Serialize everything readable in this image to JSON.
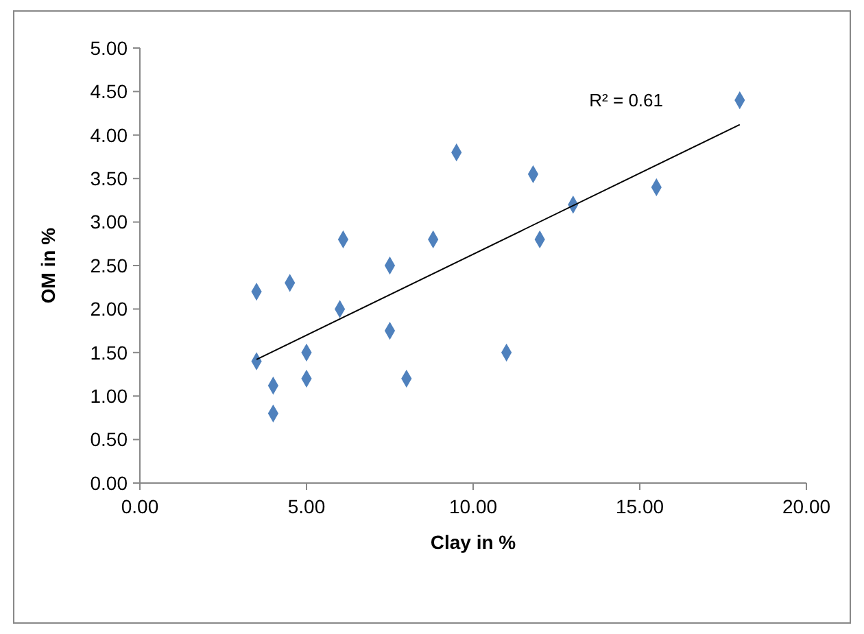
{
  "chart_data": {
    "type": "scatter",
    "xlabel": "Clay in %",
    "ylabel": "OM in %",
    "xlim": [
      0,
      20
    ],
    "ylim": [
      0,
      5
    ],
    "xticks": [
      {
        "value": 0,
        "label": "0.00"
      },
      {
        "value": 5,
        "label": "5.00"
      },
      {
        "value": 10,
        "label": "10.00"
      },
      {
        "value": 15,
        "label": "15.00"
      },
      {
        "value": 20,
        "label": "20.00"
      }
    ],
    "yticks": [
      {
        "value": 0,
        "label": "0.00"
      },
      {
        "value": 0.5,
        "label": "0.50"
      },
      {
        "value": 1,
        "label": "1.00"
      },
      {
        "value": 1.5,
        "label": "1.50"
      },
      {
        "value": 2,
        "label": "2.00"
      },
      {
        "value": 2.5,
        "label": "2.50"
      },
      {
        "value": 3,
        "label": "3.00"
      },
      {
        "value": 3.5,
        "label": "3.50"
      },
      {
        "value": 4,
        "label": "4.00"
      },
      {
        "value": 4.5,
        "label": "4.50"
      },
      {
        "value": 5,
        "label": "5.00"
      }
    ],
    "grid": false,
    "series": [
      {
        "marker": "diamond",
        "color": "#4f81bd",
        "x": [
          3.5,
          3.5,
          4,
          4,
          4.5,
          5,
          5,
          6,
          6.1,
          7.5,
          7.5,
          8,
          8.8,
          9.5,
          11,
          11.8,
          12,
          13,
          15.5,
          18
        ],
        "values": [
          2.2,
          1.4,
          1.12,
          0.8,
          2.3,
          1.5,
          1.2,
          2.0,
          2.8,
          2.5,
          1.75,
          1.2,
          2.8,
          3.8,
          1.5,
          3.55,
          2.8,
          3.2,
          3.4,
          4.4
        ]
      },
      {
        "type": "line",
        "marker": "none",
        "line_style": "solid",
        "color": "#000000",
        "x": [
          3.5,
          18
        ],
        "values": [
          1.42,
          4.12
        ]
      }
    ],
    "annotations": [
      "R² = 0.61"
    ]
  }
}
